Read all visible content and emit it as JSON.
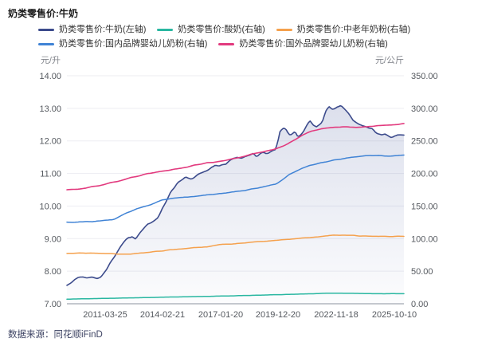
{
  "title": "奶类零售价:牛奶",
  "source": {
    "label": "数据来源：",
    "value": "同花顺iFinD"
  },
  "chart_data": {
    "type": "line",
    "title": "奶类零售价:牛奶",
    "grid": true,
    "legend_position": "top-left",
    "left_axis": {
      "unit": "元/升",
      "min": 7,
      "max": 14,
      "tick_labels": [
        "14.00",
        "13.00",
        "12.00",
        "11.00",
        "10.00",
        "9.00",
        "8.00",
        "7.00"
      ]
    },
    "right_axis": {
      "unit": "元/公斤",
      "min": 0,
      "max": 350,
      "tick_labels": [
        "350.00",
        "300.00",
        "250.00",
        "200.00",
        "150.00",
        "100.00",
        "50.00",
        "0.00"
      ]
    },
    "x_ticks": [
      {
        "label": "2011-03-25",
        "pos": 0.1135
      },
      {
        "label": "2014-02-21",
        "pos": 0.2837
      },
      {
        "label": "2017-01-20",
        "pos": 0.4563
      },
      {
        "label": "2019-12-20",
        "pos": 0.6265
      },
      {
        "label": "2022-11-18",
        "pos": 0.7991
      },
      {
        "label": "2025-10-10",
        "pos": 0.9716
      }
    ],
    "legend_rows": [
      [
        0,
        1,
        2
      ],
      [
        3,
        4
      ]
    ],
    "area_gradient": [
      "rgba(92,108,168,0.22)",
      "rgba(92,108,168,0.02)"
    ],
    "series": [
      {
        "id": "milk",
        "name": "奶类零售价:牛奶(左轴)",
        "axis": "left",
        "color": "#3c4b8c",
        "width": 1.6,
        "area": true,
        "jitter": 0.035,
        "noise_scale": 2.5,
        "points": [
          [
            0,
            7.6
          ],
          [
            0.012,
            7.65
          ],
          [
            0.035,
            7.8
          ],
          [
            0.059,
            7.79
          ],
          [
            0.075,
            7.82
          ],
          [
            0.089,
            7.79
          ],
          [
            0.101,
            7.84
          ],
          [
            0.112,
            8.0
          ],
          [
            0.133,
            8.32
          ],
          [
            0.157,
            8.72
          ],
          [
            0.171,
            8.9
          ],
          [
            0.183,
            9.02
          ],
          [
            0.194,
            9.06
          ],
          [
            0.204,
            8.98
          ],
          [
            0.218,
            9.18
          ],
          [
            0.241,
            9.45
          ],
          [
            0.258,
            9.55
          ],
          [
            0.269,
            9.66
          ],
          [
            0.281,
            9.85
          ],
          [
            0.295,
            10.15
          ],
          [
            0.309,
            10.45
          ],
          [
            0.328,
            10.72
          ],
          [
            0.351,
            10.87
          ],
          [
            0.37,
            10.84
          ],
          [
            0.386,
            10.94
          ],
          [
            0.403,
            11.05
          ],
          [
            0.417,
            11.12
          ],
          [
            0.429,
            11.22
          ],
          [
            0.44,
            11.27
          ],
          [
            0.45,
            11.21
          ],
          [
            0.464,
            11.28
          ],
          [
            0.478,
            11.35
          ],
          [
            0.492,
            11.43
          ],
          [
            0.506,
            11.5
          ],
          [
            0.518,
            11.45
          ],
          [
            0.529,
            11.52
          ],
          [
            0.541,
            11.56
          ],
          [
            0.553,
            11.6
          ],
          [
            0.562,
            11.52
          ],
          [
            0.574,
            11.6
          ],
          [
            0.585,
            11.65
          ],
          [
            0.597,
            11.62
          ],
          [
            0.609,
            11.7
          ],
          [
            0.618,
            11.74
          ],
          [
            0.625,
            11.95
          ],
          [
            0.632,
            12.3
          ],
          [
            0.639,
            12.4
          ],
          [
            0.649,
            12.35
          ],
          [
            0.658,
            12.22
          ],
          [
            0.667,
            12.18
          ],
          [
            0.677,
            12.27
          ],
          [
            0.686,
            12.12
          ],
          [
            0.696,
            12.2
          ],
          [
            0.705,
            12.32
          ],
          [
            0.714,
            12.5
          ],
          [
            0.721,
            12.6
          ],
          [
            0.731,
            12.48
          ],
          [
            0.74,
            12.42
          ],
          [
            0.749,
            12.5
          ],
          [
            0.759,
            12.62
          ],
          [
            0.768,
            12.88
          ],
          [
            0.777,
            13.02
          ],
          [
            0.787,
            12.97
          ],
          [
            0.796,
            13.0
          ],
          [
            0.806,
            13.06
          ],
          [
            0.813,
            13.12
          ],
          [
            0.822,
            13.02
          ],
          [
            0.831,
            12.9
          ],
          [
            0.841,
            12.76
          ],
          [
            0.85,
            12.65
          ],
          [
            0.859,
            12.56
          ],
          [
            0.869,
            12.48
          ],
          [
            0.878,
            12.44
          ],
          [
            0.888,
            12.42
          ],
          [
            0.897,
            12.4
          ],
          [
            0.906,
            12.36
          ],
          [
            0.916,
            12.25
          ],
          [
            0.925,
            12.2
          ],
          [
            0.934,
            12.16
          ],
          [
            0.944,
            12.18
          ],
          [
            0.953,
            12.16
          ],
          [
            0.962,
            12.12
          ],
          [
            0.972,
            12.16
          ],
          [
            0.983,
            12.18
          ],
          [
            0.99,
            12.15
          ],
          [
            1,
            12.2
          ]
        ]
      },
      {
        "id": "yogurt",
        "name": "奶类零售价:酸奶(右轴)",
        "axis": "right",
        "color": "#2ab7a1",
        "width": 1.5,
        "area": false,
        "jitter": 0.15,
        "noise_scale": 5,
        "points": [
          [
            0,
            7
          ],
          [
            0.1,
            8
          ],
          [
            0.19,
            9
          ],
          [
            0.28,
            10
          ],
          [
            0.38,
            11
          ],
          [
            0.47,
            12
          ],
          [
            0.56,
            13
          ],
          [
            0.63,
            14
          ],
          [
            0.7,
            15
          ],
          [
            0.77,
            16
          ],
          [
            0.84,
            16
          ],
          [
            0.91,
            15.5
          ],
          [
            1,
            15.5
          ]
        ]
      },
      {
        "id": "middle-aged-milk-powder",
        "name": "奶类零售价:中老年奶粉(右轴)",
        "axis": "right",
        "color": "#f5a14d",
        "width": 1.5,
        "area": false,
        "jitter": 0.45,
        "noise_scale": 4,
        "points": [
          [
            0,
            77.5
          ],
          [
            0.07,
            78
          ],
          [
            0.14,
            76.5
          ],
          [
            0.19,
            76
          ],
          [
            0.24,
            79
          ],
          [
            0.28,
            81
          ],
          [
            0.33,
            84
          ],
          [
            0.38,
            86
          ],
          [
            0.42,
            88
          ],
          [
            0.46,
            91
          ],
          [
            0.52,
            93
          ],
          [
            0.56,
            95
          ],
          [
            0.61,
            97
          ],
          [
            0.655,
            99
          ],
          [
            0.7,
            101
          ],
          [
            0.75,
            103
          ],
          [
            0.78,
            105
          ],
          [
            0.82,
            105.5
          ],
          [
            0.86,
            104.5
          ],
          [
            0.91,
            103.5
          ],
          [
            0.96,
            103
          ],
          [
            1,
            103.5
          ]
        ]
      },
      {
        "id": "domestic-infant-formula",
        "name": "奶类零售价:国内品牌婴幼儿奶粉(右轴)",
        "axis": "right",
        "color": "#4083d5",
        "width": 1.5,
        "area": false,
        "jitter": 0.55,
        "noise_scale": 4,
        "points": [
          [
            0,
            125
          ],
          [
            0.05,
            125.5
          ],
          [
            0.1,
            127
          ],
          [
            0.14,
            130
          ],
          [
            0.18,
            140
          ],
          [
            0.21,
            146
          ],
          [
            0.25,
            152.5
          ],
          [
            0.28,
            159
          ],
          [
            0.31,
            162
          ],
          [
            0.35,
            164
          ],
          [
            0.4,
            166
          ],
          [
            0.45,
            168.5
          ],
          [
            0.5,
            172
          ],
          [
            0.55,
            176
          ],
          [
            0.58,
            179
          ],
          [
            0.6,
            181
          ],
          [
            0.62,
            184
          ],
          [
            0.64,
            190
          ],
          [
            0.66,
            198
          ],
          [
            0.68,
            204
          ],
          [
            0.7,
            208
          ],
          [
            0.72,
            212
          ],
          [
            0.75,
            216
          ],
          [
            0.78,
            219
          ],
          [
            0.81,
            222
          ],
          [
            0.84,
            224
          ],
          [
            0.87,
            226
          ],
          [
            0.9,
            227.5
          ],
          [
            0.93,
            227.5
          ],
          [
            0.96,
            226
          ],
          [
            1,
            228.5
          ]
        ]
      },
      {
        "id": "foreign-infant-formula",
        "name": "奶类零售价:国外品牌婴幼儿奶粉(右轴)",
        "axis": "right",
        "color": "#e23a7e",
        "width": 1.6,
        "area": false,
        "jitter": 0.6,
        "noise_scale": 4,
        "points": [
          [
            0,
            175
          ],
          [
            0.03,
            176
          ],
          [
            0.05,
            177.5
          ],
          [
            0.07,
            179
          ],
          [
            0.09,
            181
          ],
          [
            0.11,
            183
          ],
          [
            0.13,
            186
          ],
          [
            0.15,
            188
          ],
          [
            0.17,
            190
          ],
          [
            0.19,
            193.5
          ],
          [
            0.215,
            196
          ],
          [
            0.24,
            200
          ],
          [
            0.26,
            201
          ],
          [
            0.29,
            204
          ],
          [
            0.33,
            207.5
          ],
          [
            0.375,
            212
          ],
          [
            0.42,
            216.5
          ],
          [
            0.47,
            220
          ],
          [
            0.515,
            225
          ],
          [
            0.56,
            231
          ],
          [
            0.61,
            236
          ],
          [
            0.625,
            239
          ],
          [
            0.655,
            245
          ],
          [
            0.68,
            252.5
          ],
          [
            0.7,
            259
          ],
          [
            0.725,
            265
          ],
          [
            0.755,
            269
          ],
          [
            0.79,
            271
          ],
          [
            0.82,
            272
          ],
          [
            0.86,
            271
          ],
          [
            0.91,
            272.5
          ],
          [
            0.955,
            274.5
          ],
          [
            1,
            276.5
          ]
        ]
      }
    ],
    "colors": {
      "grid": "#ededf2",
      "axis_line": "#b2b6be",
      "tick_text": "#55595f",
      "unit_text": "#84878e"
    }
  }
}
